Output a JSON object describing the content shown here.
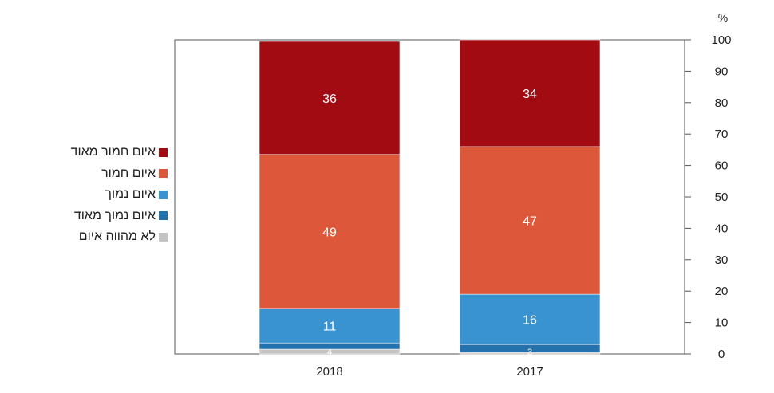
{
  "chart_data": {
    "type": "bar",
    "stacked": true,
    "categories": [
      "2018",
      "2017"
    ],
    "y_unit": "%",
    "ylim": [
      0,
      100
    ],
    "yticks": [
      0,
      10,
      20,
      30,
      40,
      50,
      60,
      70,
      80,
      90,
      100
    ],
    "y_axis_side": "right",
    "legend_position": "left",
    "series": [
      {
        "name": "לא מהווה איום",
        "color": "#c4c4c4",
        "values": [
          1.5,
          0.5
        ],
        "labels": [
          "4",
          ""
        ]
      },
      {
        "name": "איום נמוך מאוד",
        "color": "#2472ad",
        "values": [
          2,
          2.5
        ],
        "labels": [
          "",
          "3"
        ]
      },
      {
        "name": "איום נמוך",
        "color": "#3a93d1",
        "values": [
          11,
          16
        ],
        "labels": [
          "11",
          "16"
        ]
      },
      {
        "name": "איום חמור",
        "color": "#dd573b",
        "values": [
          49,
          47
        ],
        "labels": [
          "49",
          "47"
        ]
      },
      {
        "name": "איום חמור מאוד",
        "color": "#a30b12",
        "values": [
          36,
          34
        ],
        "labels": [
          "36",
          "34"
        ]
      }
    ]
  }
}
